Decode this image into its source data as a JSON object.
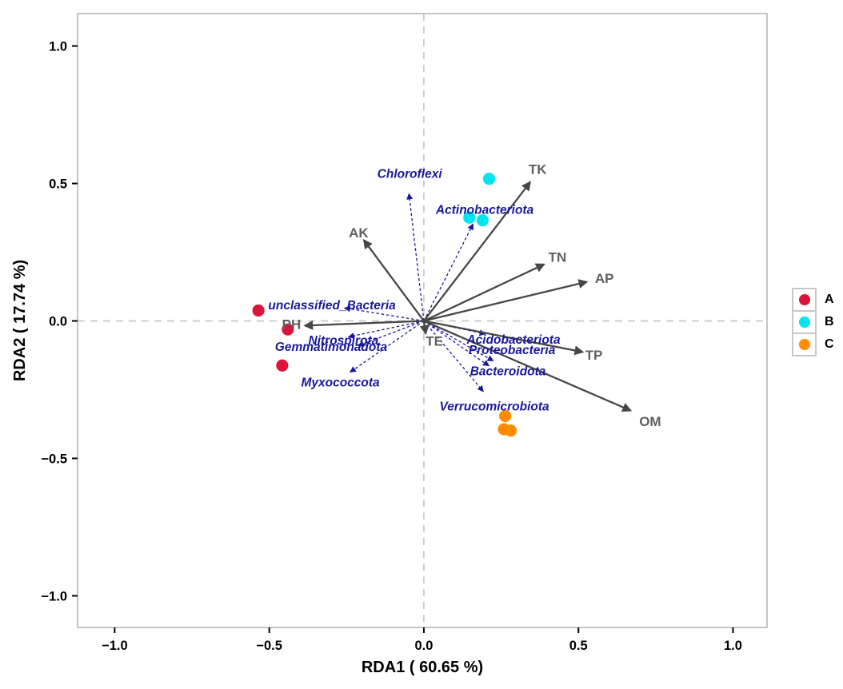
{
  "figure": {
    "background": "#FFFFFF",
    "panel_border_color": "#A6A6A6",
    "zero_line_color": "#C9C9C9",
    "tick_color": "#000000"
  },
  "chart_data": {
    "type": "scatter",
    "subtype": "rda-ordination-biplot",
    "title": "",
    "xlabel": "RDA1 ( 60.65 %)",
    "ylabel": "RDA2 ( 17.74 %)",
    "xlim": [
      -1.12,
      1.11
    ],
    "ylim": [
      -1.115,
      1.118
    ],
    "grid": "dashed-zero-lines",
    "legend_position": "right-outside",
    "x_ticks": {
      "values": [
        -1.0,
        -0.5,
        0.0,
        0.5,
        1.0
      ],
      "labels": [
        "−1.0",
        "−0.5",
        "0.0",
        "0.5",
        "1.0"
      ]
    },
    "y_ticks": {
      "values": [
        -1.0,
        -0.5,
        0.0,
        0.5,
        1.0
      ],
      "labels": [
        "−1.0",
        "−0.5",
        "0.0",
        "0.5",
        "1.0"
      ]
    },
    "groups": [
      {
        "name": "A",
        "color": "#DC143C",
        "points": [
          {
            "x": -0.535,
            "y": 0.038
          },
          {
            "x": -0.44,
            "y": -0.031
          },
          {
            "x": -0.458,
            "y": -0.162
          }
        ]
      },
      {
        "name": "B",
        "color": "#00E5EE",
        "points": [
          {
            "x": 0.211,
            "y": 0.517
          },
          {
            "x": 0.147,
            "y": 0.376
          },
          {
            "x": 0.19,
            "y": 0.366
          }
        ]
      },
      {
        "name": "C",
        "color": "#FF8C00",
        "points": [
          {
            "x": 0.263,
            "y": -0.346
          },
          {
            "x": 0.259,
            "y": -0.394
          },
          {
            "x": 0.281,
            "y": -0.399
          }
        ]
      }
    ],
    "env_vectors": {
      "style": "solid",
      "color": "#474747",
      "label_color": "#5F5F5F",
      "items": [
        {
          "name": "TK",
          "x": 0.344,
          "y": 0.505,
          "label_x": 0.368,
          "label_y": 0.553
        },
        {
          "name": "AK",
          "x": -0.194,
          "y": 0.294,
          "label_x": -0.211,
          "label_y": 0.322
        },
        {
          "name": "TN",
          "x": 0.389,
          "y": 0.206,
          "label_x": 0.432,
          "label_y": 0.232
        },
        {
          "name": "AP",
          "x": 0.527,
          "y": 0.142,
          "label_x": 0.584,
          "label_y": 0.156
        },
        {
          "name": "PH",
          "x": -0.385,
          "y": -0.017,
          "label_x": -0.428,
          "label_y": -0.012
        },
        {
          "name": "TE",
          "x": 0.006,
          "y": -0.046,
          "label_x": 0.034,
          "label_y": -0.073
        },
        {
          "name": "TP",
          "x": 0.514,
          "y": -0.113,
          "label_x": 0.55,
          "label_y": -0.123
        },
        {
          "name": "OM",
          "x": 0.669,
          "y": -0.326,
          "label_x": 0.732,
          "label_y": -0.365
        }
      ]
    },
    "taxa_vectors": {
      "style": "dashed",
      "color": "#1A1A99",
      "items": [
        {
          "name": "Chloroflexi",
          "x": -0.048,
          "y": 0.462,
          "label_x": -0.046,
          "label_y": 0.537
        },
        {
          "name": "Actinobacteriota",
          "x": 0.159,
          "y": 0.352,
          "label_x": 0.197,
          "label_y": 0.406
        },
        {
          "name": "unclassified_Bacteria",
          "x": -0.256,
          "y": 0.047,
          "label_x": -0.297,
          "label_y": 0.058
        },
        {
          "name": "Nitrospirota",
          "x": -0.243,
          "y": -0.058,
          "label_x": -0.26,
          "label_y": -0.07
        },
        {
          "name": "Gemmatimonadota",
          "x": -0.212,
          "y": -0.09,
          "label_x": -0.3,
          "label_y": -0.093
        },
        {
          "name": "Myxococcota",
          "x": -0.238,
          "y": -0.186,
          "label_x": -0.27,
          "label_y": -0.222
        },
        {
          "name": "Acidobacteriota",
          "x": 0.198,
          "y": -0.047,
          "label_x": 0.29,
          "label_y": -0.067
        },
        {
          "name": "Proteobacteria",
          "x": 0.224,
          "y": -0.145,
          "label_x": 0.285,
          "label_y": -0.105
        },
        {
          "name": "Bacteroidota",
          "x": 0.21,
          "y": -0.163,
          "label_x": 0.272,
          "label_y": -0.181
        },
        {
          "name": "Verrucomicrobiota",
          "x": 0.192,
          "y": -0.256,
          "label_x": 0.228,
          "label_y": -0.309
        }
      ]
    }
  }
}
